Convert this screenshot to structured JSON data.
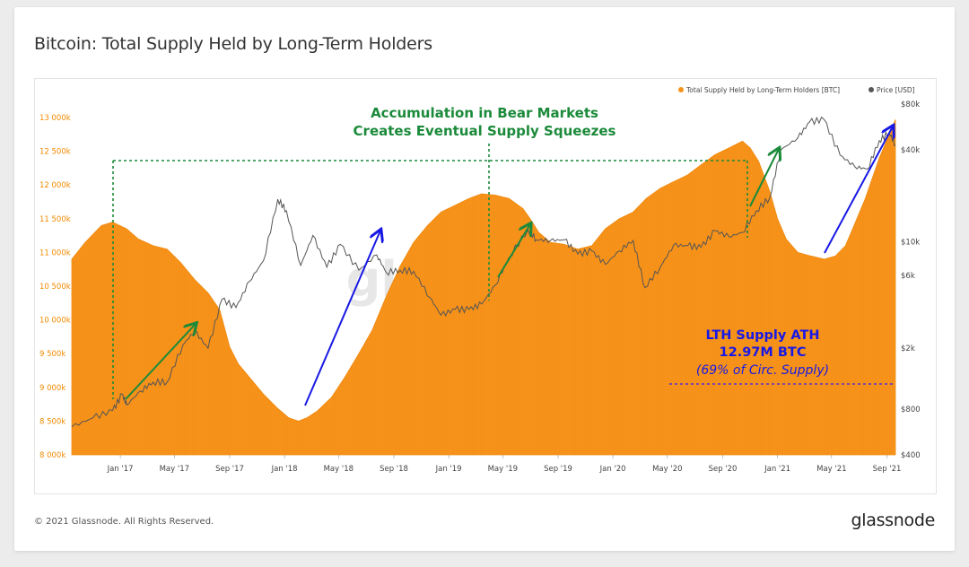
{
  "title": "Bitcoin: Total Supply Held by Long-Term Holders",
  "footer": {
    "copyright": "© 2021 Glassnode. All Rights Reserved.",
    "logo": "glassnode"
  },
  "watermark": "glassnode",
  "colors": {
    "lth": "#f7931a",
    "price": "#555555",
    "green": "#1b8a3a",
    "blue": "#1818e6",
    "tick_left": "#f08a00"
  },
  "chart_data": {
    "type": "area",
    "legend": [
      "Total Supply Held by Long-Term Holders [BTC]",
      "Price [USD]"
    ],
    "legend_position": "top-right",
    "x_range": [
      "2016-09-15",
      "2021-09-20"
    ],
    "x_ticks": [
      "Jan '17",
      "May '17",
      "Sep '17",
      "Jan '18",
      "May '18",
      "Sep '18",
      "Jan '19",
      "May '19",
      "Sep '19",
      "Jan '20",
      "May '20",
      "Sep '20",
      "Jan '21",
      "May '21",
      "Sep '21"
    ],
    "y_left": {
      "label": "",
      "ylim": [
        8000000,
        13200000
      ],
      "ticks": [
        "8 000k",
        "8 500k",
        "9 000k",
        "9 500k",
        "10 000k",
        "10 500k",
        "11 000k",
        "11 500k",
        "12 000k",
        "12 500k",
        "13 000k"
      ]
    },
    "y_right": {
      "label": "",
      "scale": "log",
      "ylim": [
        400,
        80000
      ],
      "ticks": [
        "$400",
        "$800",
        "$2k",
        "$6k",
        "$10k",
        "$40k",
        "$80k"
      ]
    },
    "series": [
      {
        "name": "Total Supply Held by Long-Term Holders [BTC]",
        "points": [
          [
            "2016-09-15",
            10900000
          ],
          [
            "2016-10-15",
            11150000
          ],
          [
            "2016-11-20",
            11400000
          ],
          [
            "2016-12-15",
            11450000
          ],
          [
            "2017-01-15",
            11350000
          ],
          [
            "2017-02-10",
            11200000
          ],
          [
            "2017-03-15",
            11100000
          ],
          [
            "2017-04-15",
            11050000
          ],
          [
            "2017-05-15",
            10850000
          ],
          [
            "2017-06-15",
            10600000
          ],
          [
            "2017-07-15",
            10400000
          ],
          [
            "2017-08-10",
            10150000
          ],
          [
            "2017-09-01",
            9600000
          ],
          [
            "2017-09-20",
            9350000
          ],
          [
            "2017-10-15",
            9150000
          ],
          [
            "2017-11-15",
            8900000
          ],
          [
            "2017-12-15",
            8700000
          ],
          [
            "2018-01-10",
            8550000
          ],
          [
            "2018-02-01",
            8500000
          ],
          [
            "2018-02-20",
            8550000
          ],
          [
            "2018-03-15",
            8650000
          ],
          [
            "2018-04-15",
            8850000
          ],
          [
            "2018-05-15",
            9150000
          ],
          [
            "2018-06-15",
            9500000
          ],
          [
            "2018-07-15",
            9850000
          ],
          [
            "2018-08-15",
            10350000
          ],
          [
            "2018-09-15",
            10800000
          ],
          [
            "2018-10-15",
            11150000
          ],
          [
            "2018-11-15",
            11400000
          ],
          [
            "2018-12-15",
            11600000
          ],
          [
            "2019-01-15",
            11700000
          ],
          [
            "2019-02-15",
            11800000
          ],
          [
            "2019-03-15",
            11870000
          ],
          [
            "2019-04-15",
            11850000
          ],
          [
            "2019-05-15",
            11800000
          ],
          [
            "2019-06-15",
            11650000
          ],
          [
            "2019-07-01",
            11500000
          ],
          [
            "2019-07-20",
            11300000
          ],
          [
            "2019-08-15",
            11150000
          ],
          [
            "2019-09-15",
            11120000
          ],
          [
            "2019-10-15",
            11050000
          ],
          [
            "2019-11-15",
            11100000
          ],
          [
            "2019-12-15",
            11350000
          ],
          [
            "2020-01-15",
            11500000
          ],
          [
            "2020-02-15",
            11600000
          ],
          [
            "2020-03-15",
            11800000
          ],
          [
            "2020-04-15",
            11950000
          ],
          [
            "2020-05-15",
            12050000
          ],
          [
            "2020-06-15",
            12150000
          ],
          [
            "2020-07-15",
            12300000
          ],
          [
            "2020-08-15",
            12450000
          ],
          [
            "2020-09-15",
            12550000
          ],
          [
            "2020-10-15",
            12650000
          ],
          [
            "2020-11-01",
            12550000
          ],
          [
            "2020-11-20",
            12350000
          ],
          [
            "2020-12-15",
            11900000
          ],
          [
            "2021-01-01",
            11500000
          ],
          [
            "2021-01-20",
            11200000
          ],
          [
            "2021-02-15",
            11000000
          ],
          [
            "2021-03-15",
            10950000
          ],
          [
            "2021-04-15",
            10900000
          ],
          [
            "2021-05-10",
            10950000
          ],
          [
            "2021-06-01",
            11100000
          ],
          [
            "2021-06-20",
            11400000
          ],
          [
            "2021-07-15",
            11800000
          ],
          [
            "2021-08-15",
            12400000
          ],
          [
            "2021-09-20",
            12970000
          ]
        ]
      },
      {
        "name": "Price [USD]",
        "points": [
          [
            "2016-09-15",
            610
          ],
          [
            "2016-11-01",
            700
          ],
          [
            "2016-12-15",
            780
          ],
          [
            "2017-01-05",
            1000
          ],
          [
            "2017-01-15",
            850
          ],
          [
            "2017-02-15",
            1050
          ],
          [
            "2017-03-15",
            1200
          ],
          [
            "2017-04-15",
            1200
          ],
          [
            "2017-05-20",
            2100
          ],
          [
            "2017-06-15",
            2600
          ],
          [
            "2017-07-15",
            2000
          ],
          [
            "2017-08-15",
            4200
          ],
          [
            "2017-09-15",
            3700
          ],
          [
            "2017-10-15",
            5500
          ],
          [
            "2017-11-15",
            7500
          ],
          [
            "2017-12-17",
            19000
          ],
          [
            "2018-01-05",
            16000
          ],
          [
            "2018-02-06",
            7000
          ],
          [
            "2018-03-05",
            11000
          ],
          [
            "2018-04-05",
            6800
          ],
          [
            "2018-05-05",
            9600
          ],
          [
            "2018-06-15",
            6500
          ],
          [
            "2018-07-25",
            8200
          ],
          [
            "2018-08-15",
            6300
          ],
          [
            "2018-09-15",
            6500
          ],
          [
            "2018-10-15",
            6400
          ],
          [
            "2018-11-20",
            4300
          ],
          [
            "2018-12-15",
            3300
          ],
          [
            "2019-01-15",
            3600
          ],
          [
            "2019-02-15",
            3600
          ],
          [
            "2019-03-15",
            3900
          ],
          [
            "2019-04-15",
            5200
          ],
          [
            "2019-05-15",
            7900
          ],
          [
            "2019-06-26",
            12000
          ],
          [
            "2019-07-15",
            10300
          ],
          [
            "2019-08-15",
            10200
          ],
          [
            "2019-09-15",
            10300
          ],
          [
            "2019-10-15",
            8300
          ],
          [
            "2019-11-15",
            8700
          ],
          [
            "2019-12-15",
            7100
          ],
          [
            "2020-01-15",
            8700
          ],
          [
            "2020-02-15",
            10200
          ],
          [
            "2020-03-12",
            5000
          ],
          [
            "2020-04-15",
            6800
          ],
          [
            "2020-05-15",
            9500
          ],
          [
            "2020-06-15",
            9400
          ],
          [
            "2020-07-15",
            9200
          ],
          [
            "2020-08-15",
            11800
          ],
          [
            "2020-09-15",
            10800
          ],
          [
            "2020-10-15",
            11500
          ],
          [
            "2020-11-15",
            16000
          ],
          [
            "2020-12-15",
            19500
          ],
          [
            "2021-01-08",
            40000
          ],
          [
            "2021-02-15",
            48000
          ],
          [
            "2021-03-13",
            61000
          ],
          [
            "2021-04-14",
            63500
          ],
          [
            "2021-05-20",
            37000
          ],
          [
            "2021-06-22",
            31000
          ],
          [
            "2021-07-20",
            30000
          ],
          [
            "2021-08-15",
            46000
          ],
          [
            "2021-09-06",
            52000
          ],
          [
            "2021-09-20",
            43000
          ]
        ]
      }
    ],
    "annotations": [
      {
        "text": "Accumulation in Bear Markets",
        "color": "green"
      },
      {
        "text": "Creates Eventual Supply Squeezes",
        "color": "green"
      },
      {
        "text": "LTH Supply ATH",
        "color": "blue"
      },
      {
        "text": "12.97M BTC",
        "color": "blue"
      },
      {
        "text": "(69% of Circ. Supply)",
        "color": "blue"
      }
    ]
  }
}
